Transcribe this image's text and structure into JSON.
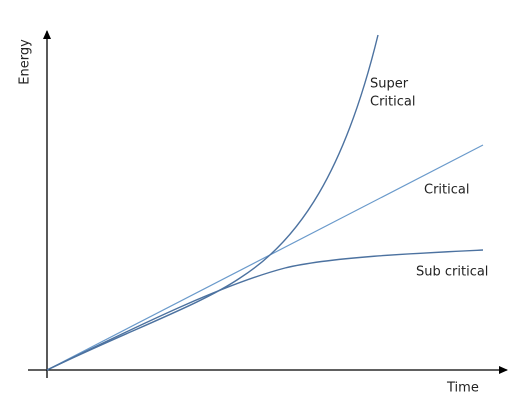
{
  "axes": {
    "y_label": "Energy",
    "x_label": "Time"
  },
  "curves": [
    {
      "label": [
        "Super",
        "Critical"
      ]
    },
    {
      "label": [
        "Critical"
      ]
    },
    {
      "label": [
        "Sub critical"
      ]
    }
  ]
}
